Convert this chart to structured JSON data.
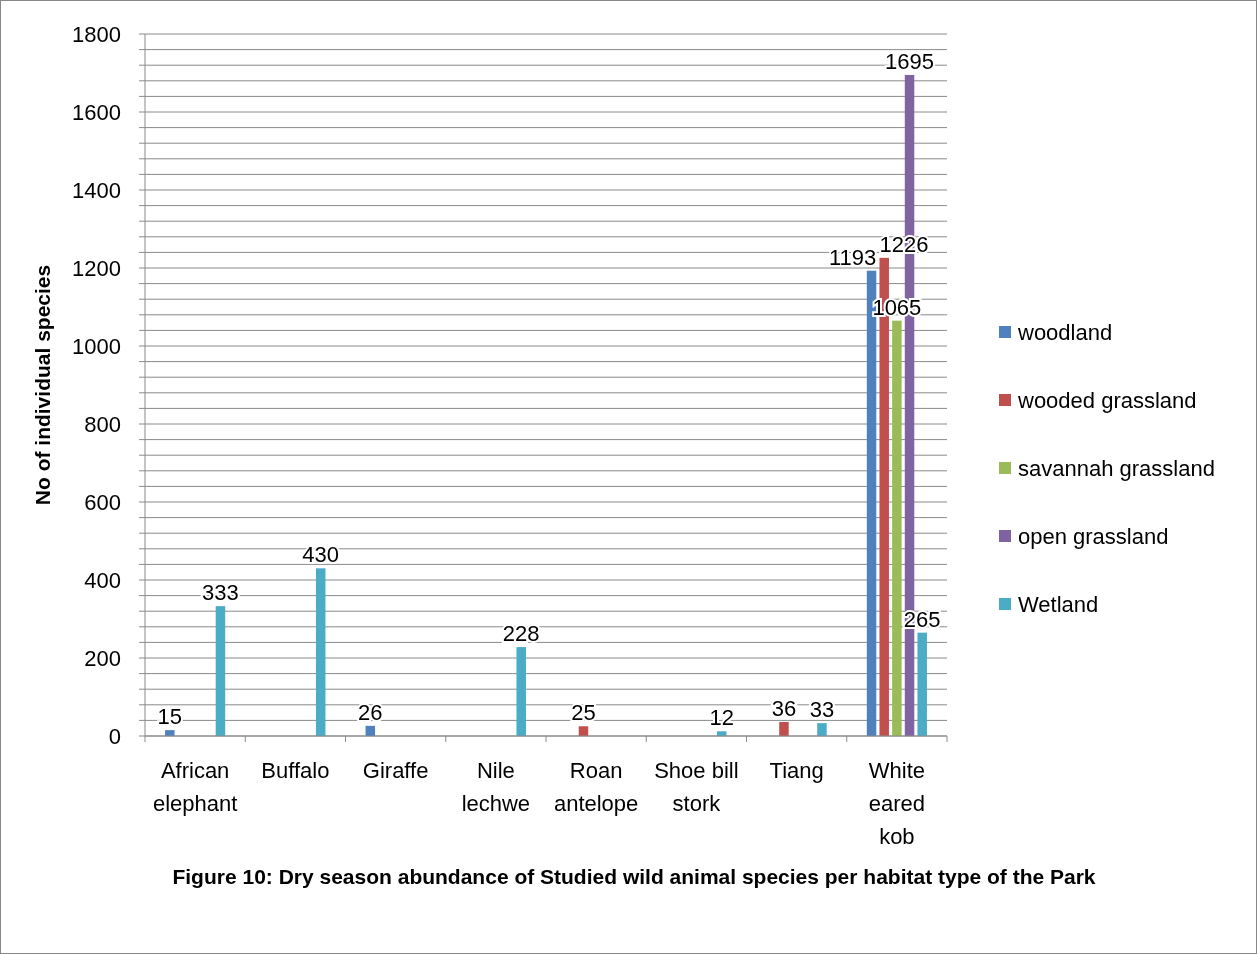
{
  "chart_data": {
    "type": "bar",
    "title": "Figure 10: Dry season abundance of Studied wild animal species per habitat type of the Park",
    "ylabel": "No of individual species",
    "categories": [
      "African elephant",
      "Buffalo",
      "Giraffe",
      "Nile lechwe",
      "Roan antelope",
      "Shoe bill stork",
      "Tiang",
      "White eared kob"
    ],
    "series": [
      {
        "name": "woodland",
        "color": "#4f81bd",
        "values": [
          15,
          null,
          26,
          null,
          null,
          null,
          null,
          1193
        ]
      },
      {
        "name": "wooded grassland",
        "color": "#c0504d",
        "values": [
          null,
          null,
          null,
          null,
          25,
          null,
          36,
          1226
        ]
      },
      {
        "name": "savannah grassland",
        "color": "#9bbb59",
        "values": [
          null,
          null,
          null,
          null,
          null,
          null,
          null,
          1065
        ]
      },
      {
        "name": "open grassland",
        "color": "#8064a2",
        "values": [
          null,
          null,
          null,
          null,
          null,
          null,
          null,
          1695
        ]
      },
      {
        "name": "Wetland",
        "color": "#4bacc6",
        "values": [
          333,
          430,
          null,
          228,
          null,
          12,
          33,
          265
        ]
      }
    ],
    "ylim": [
      0,
      1800
    ],
    "yticks": [
      0,
      {
        "value": 40,
        "label": null
      },
      {
        "value": 80,
        "label": null
      },
      {
        "value": 120,
        "label": null
      },
      {
        "value": 160,
        "label": null
      },
      200,
      {
        "value": 240,
        "label": null
      },
      {
        "value": 280,
        "label": null
      },
      {
        "value": 320,
        "label": null
      },
      {
        "value": 360,
        "label": null
      },
      400,
      {
        "value": 440,
        "label": null
      },
      {
        "value": 480,
        "label": null
      },
      {
        "value": 520,
        "label": null
      },
      {
        "value": 560,
        "label": null
      },
      600,
      {
        "value": 640,
        "label": null
      },
      {
        "value": 680,
        "label": null
      },
      {
        "value": 720,
        "label": null
      },
      {
        "value": 760,
        "label": null
      },
      800,
      {
        "value": 840,
        "label": null
      },
      {
        "value": 880,
        "label": null
      },
      {
        "value": 920,
        "label": null
      },
      {
        "value": 960,
        "label": null
      },
      1000,
      {
        "value": 1040,
        "label": null
      },
      {
        "value": 1080,
        "label": null
      },
      {
        "value": 1120,
        "label": null
      },
      {
        "value": 1160,
        "label": null
      },
      1200,
      {
        "value": 1240,
        "label": null
      },
      {
        "value": 1280,
        "label": null
      },
      {
        "value": 1320,
        "label": null
      },
      {
        "value": 1360,
        "label": null
      },
      1400,
      {
        "value": 1440,
        "label": null
      },
      {
        "value": 1480,
        "label": null
      },
      {
        "value": 1520,
        "label": null
      },
      {
        "value": 1560,
        "label": null
      },
      1600,
      {
        "value": 1640,
        "label": null
      },
      {
        "value": 1680,
        "label": null
      },
      {
        "value": 1720,
        "label": null
      },
      {
        "value": 1760,
        "label": null
      },
      1800
    ],
    "grid": "y",
    "legend": "right",
    "data_labels": true
  }
}
